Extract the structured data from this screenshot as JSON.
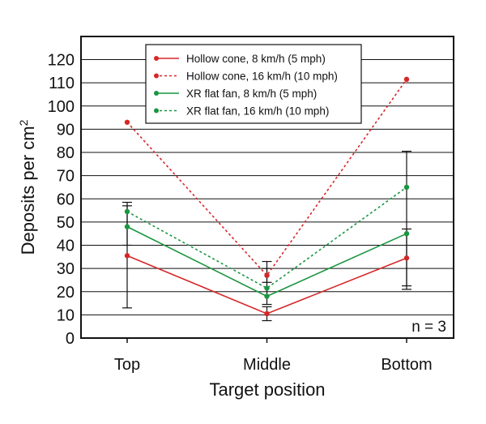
{
  "chart_data": {
    "type": "line",
    "title": "",
    "xlabel": "Target position",
    "ylabel_main": "Deposits per cm",
    "ylabel_sup": "2",
    "categories": [
      "Top",
      "Middle",
      "Bottom"
    ],
    "ylim": [
      0,
      120
    ],
    "yticks": [
      0,
      10,
      20,
      30,
      40,
      50,
      60,
      70,
      80,
      90,
      100,
      110,
      120
    ],
    "grid": "horizontal",
    "legend_position": "top-center",
    "annotation": "n = 3",
    "series": [
      {
        "name": "Hollow cone, 8 km/h (5 mph)",
        "color": "#d62728",
        "dashed": false,
        "values": [
          35.5,
          10.5,
          34.5
        ],
        "error_low": [
          null,
          7.5,
          null
        ],
        "error_high": [
          null,
          13.5,
          null
        ]
      },
      {
        "name": "Hollow cone, 16 km/h (10 mph)",
        "color": "#d62728",
        "dashed": true,
        "values": [
          93,
          27,
          111.5
        ],
        "error_low": [
          null,
          24,
          null
        ],
        "error_high": [
          null,
          30,
          null
        ]
      },
      {
        "name": "XR flat fan, 8 km/h (5 mph)",
        "color": "#1a9641",
        "dashed": false,
        "values": [
          48,
          18,
          45
        ],
        "error_low": [
          13,
          null,
          22.5
        ],
        "error_high": [
          57,
          null,
          47
        ]
      },
      {
        "name": "XR flat fan, 16 km/h (10 mph)",
        "color": "#1a9641",
        "dashed": true,
        "values": [
          54.5,
          21.5,
          65
        ],
        "error_low": [
          40,
          14.5,
          21
        ],
        "error_high": [
          58.5,
          33,
          80.5
        ]
      }
    ]
  }
}
